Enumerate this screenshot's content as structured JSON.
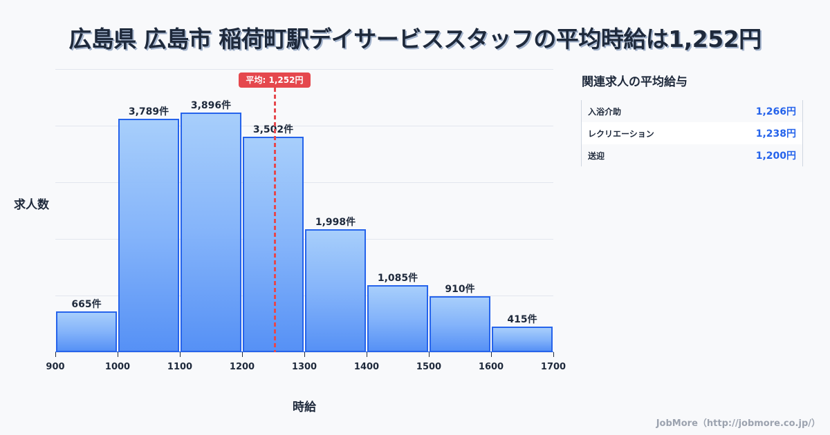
{
  "title": "広島県 広島市 稲荷町駅デイサービススタッフの平均時給は1,252円",
  "mean_badge": "平均: 1,252円",
  "axis": {
    "ylabel": "求人数",
    "xlabel": "時給"
  },
  "chart_data": {
    "type": "bar",
    "title": "広島県 広島市 稲荷町駅デイサービススタッフの平均時給は1,252円",
    "xlabel": "時給",
    "ylabel": "求人数",
    "bins": [
      [
        900,
        1000
      ],
      [
        1000,
        1100
      ],
      [
        1100,
        1200
      ],
      [
        1200,
        1300
      ],
      [
        1300,
        1400
      ],
      [
        1400,
        1500
      ],
      [
        1500,
        1600
      ],
      [
        1600,
        1700
      ]
    ],
    "x_ticks": [
      "900",
      "1000",
      "1100",
      "1200",
      "1300",
      "1400",
      "1500",
      "1600",
      "1700"
    ],
    "values": [
      665,
      3789,
      3896,
      3502,
      1998,
      1085,
      910,
      415
    ],
    "value_labels": [
      "665件",
      "3,789件",
      "3,896件",
      "3,502件",
      "1,998件",
      "1,085件",
      "910件",
      "415件"
    ],
    "mean": 1252,
    "mean_label": "平均: 1,252円",
    "ylim": [
      0,
      4600
    ],
    "xlim": [
      900,
      1700
    ],
    "grid": true,
    "colors": {
      "bar_border": "#2563eb",
      "bar_top": "#a3ccfb",
      "bar_bottom": "#4d8bf5",
      "mean_line": "#e5484d"
    }
  },
  "side_panel": {
    "title": "関連求人の平均給与",
    "rows": [
      {
        "label": "入浴介助",
        "value": "1,266円"
      },
      {
        "label": "レクリエーション",
        "value": "1,238円"
      },
      {
        "label": "送迎",
        "value": "1,200円"
      }
    ]
  },
  "credit": "JobMore（http://jobmore.co.jp/）"
}
